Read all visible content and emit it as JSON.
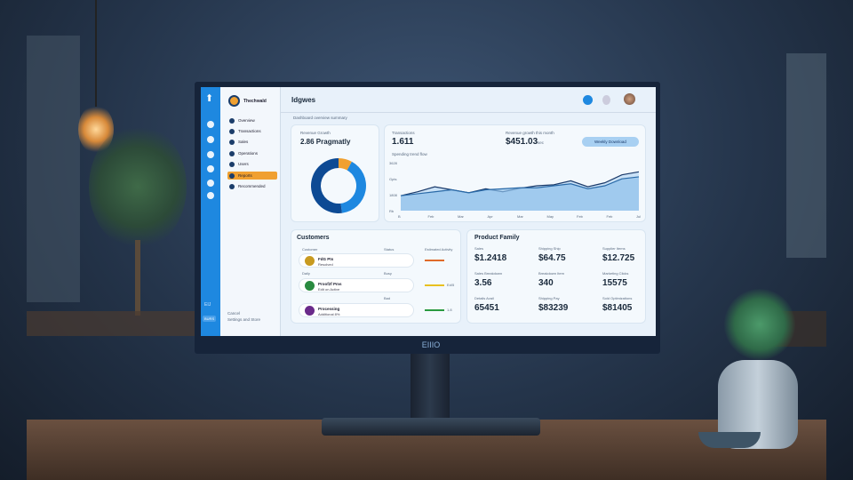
{
  "scene": {
    "brand": "EIIIO"
  },
  "app": {
    "name": "Thechwald",
    "title": "Idgwes",
    "breadcrumb": "Dashboard overview summary"
  },
  "nav": {
    "items": [
      {
        "label": "Overview"
      },
      {
        "label": "Transactions"
      },
      {
        "label": "Sales"
      },
      {
        "label": "Operations"
      },
      {
        "label": "Users"
      },
      {
        "label": "Reports",
        "active": true
      },
      {
        "label": "Recommended"
      }
    ],
    "footer": [
      "Cancel",
      "Settings and Store"
    ],
    "rail_badges": [
      "EIJ",
      "BURS"
    ]
  },
  "donut": {
    "label": "Revenue Growth",
    "value": "2.86 Pragmatly",
    "slices": [
      {
        "value": 8,
        "color": "#f0a030"
      },
      {
        "value": 40,
        "color": "#1e88e0"
      },
      {
        "value": 52,
        "color": "#0d4a94"
      }
    ]
  },
  "trend": {
    "kpi1_label": "Transactions",
    "kpi1": "1.611",
    "kpi2_label": "Revenue growth this month",
    "kpi2": "$451.03",
    "kpi2_unit": "sec",
    "button": "Weekly Download",
    "chart_label": "Spending trend flow",
    "y_ticks": [
      "3628",
      "Gpts",
      "1808",
      "Rb"
    ],
    "x_ticks": [
      "B",
      "Feb",
      "Mar",
      "Apr",
      "Mar",
      "May",
      "Feb",
      "Feb",
      "Jul"
    ],
    "chart_data": {
      "type": "area",
      "series": [
        {
          "values": [
            30,
            38,
            48,
            42,
            36,
            44,
            38,
            45,
            50,
            52,
            60,
            48,
            56,
            72,
            78
          ]
        },
        {
          "values": [
            30,
            34,
            38,
            42,
            36,
            42,
            44,
            46,
            46,
            50,
            54,
            44,
            50,
            64,
            68
          ]
        }
      ],
      "ylim": [
        0,
        100
      ]
    }
  },
  "customers": {
    "title": "Customers",
    "col1": "Customer",
    "col2": "Status",
    "col3": "Estimated Activity",
    "rows": [
      {
        "name": "FdG Pts",
        "sub": "Resolved",
        "tag": "",
        "bar_color": "#e06a2a",
        "bar_label": "",
        "avatar": "#c89a20",
        "group": ""
      },
      {
        "name": "Proof2f Pms",
        "sub": "Edit on Active",
        "tag": "Busy",
        "bar_color": "#e8c020",
        "bar_label": "Ed/5",
        "avatar": "#2a8a40",
        "group": "Daily"
      },
      {
        "name": "Processing",
        "sub": "Additional 8%",
        "tag": "Bad",
        "bar_color": "#2a9a40",
        "bar_label": "1.8",
        "avatar": "#6a2a8a",
        "group": ""
      }
    ]
  },
  "product": {
    "title": "Product Family",
    "cells": [
      {
        "label": "Sales",
        "value": "$1.2418"
      },
      {
        "label": "Shipping Ship",
        "value": "$64.75"
      },
      {
        "label": "Supplier Items",
        "value": "$12.725"
      },
      {
        "label": "Sales Breakdown",
        "value": "3.56"
      },
      {
        "label": "Breakdown Item",
        "value": "340"
      },
      {
        "label": "Marketing Clicks",
        "value": "15575"
      },
      {
        "label": "Details Avail",
        "value": "65451"
      },
      {
        "label": "Shipping Pay",
        "value": "$83239"
      },
      {
        "label": "Sold Optimizations",
        "value": "$81405"
      }
    ]
  }
}
